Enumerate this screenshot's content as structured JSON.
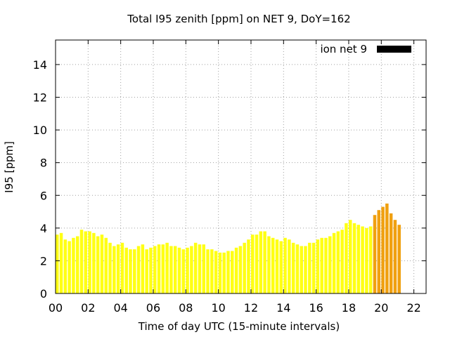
{
  "chart_data": {
    "type": "bar",
    "title": "Total I95 zenith [ppm] on NET 9, DoY=162",
    "xlabel": "Time of day UTC (15-minute intervals)",
    "ylabel": "I95 [ppm]",
    "xlim": [
      0,
      22.75
    ],
    "ylim": [
      0,
      15.5
    ],
    "x_ticks": [
      "00",
      "02",
      "04",
      "06",
      "08",
      "10",
      "12",
      "14",
      "16",
      "18",
      "20",
      "22"
    ],
    "y_ticks": [
      "0",
      "2",
      "4",
      "6",
      "8",
      "10",
      "12",
      "14"
    ],
    "grid": true,
    "legend_position": "top-right",
    "interval_hours": 0.25,
    "colors": {
      "normal": "#ffff14",
      "elevated": "#f0a010",
      "legend": "#000000",
      "frame": "#000000"
    },
    "series": [
      {
        "name": "ion net 9",
        "values": [
          3.6,
          3.7,
          3.3,
          3.2,
          3.4,
          3.5,
          3.9,
          3.8,
          3.8,
          3.7,
          3.5,
          3.6,
          3.4,
          3.1,
          2.9,
          3.0,
          3.1,
          2.8,
          2.7,
          2.7,
          2.9,
          3.0,
          2.7,
          2.8,
          2.9,
          3.0,
          3.0,
          3.1,
          2.9,
          2.9,
          2.8,
          2.7,
          2.8,
          2.9,
          3.1,
          3.0,
          3.0,
          2.7,
          2.7,
          2.6,
          2.5,
          2.5,
          2.6,
          2.6,
          2.8,
          2.9,
          3.1,
          3.3,
          3.6,
          3.6,
          3.8,
          3.8,
          3.5,
          3.4,
          3.3,
          3.2,
          3.4,
          3.3,
          3.1,
          3.0,
          2.9,
          2.9,
          3.1,
          3.1,
          3.3,
          3.4,
          3.4,
          3.5,
          3.7,
          3.8,
          3.9,
          4.3,
          4.5,
          4.3,
          4.2,
          4.1,
          4.0,
          4.1,
          4.8,
          5.1,
          5.3,
          5.5,
          4.9,
          4.5,
          4.2
        ],
        "elevated_from_index": 78
      }
    ]
  }
}
